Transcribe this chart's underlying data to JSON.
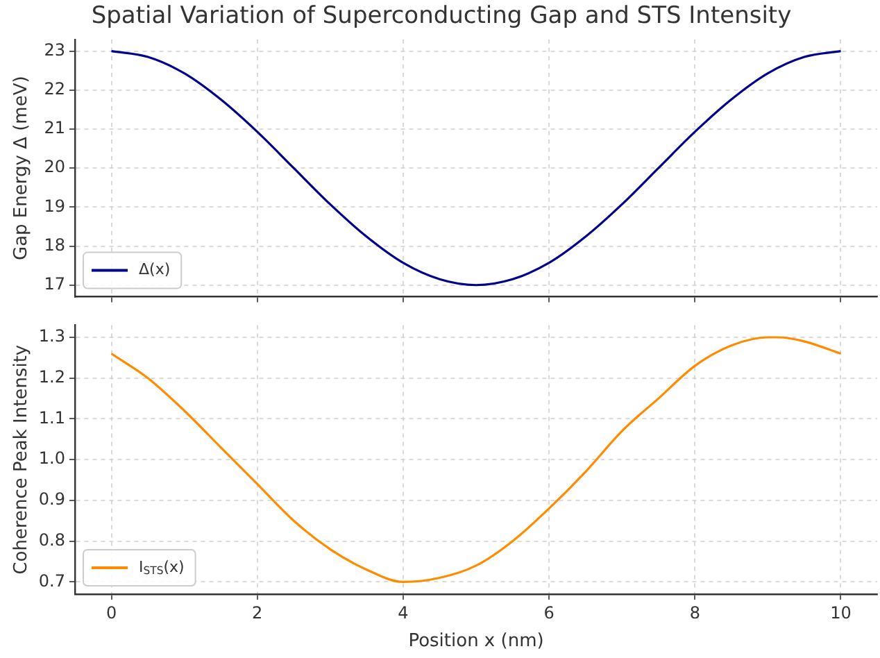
{
  "chart_data": [
    {
      "type": "line",
      "title": "Spatial Variation of Superconducting Gap and STS Intensity",
      "ylabel": "Gap Energy Δ (meV)",
      "x": [
        0,
        0.5,
        1,
        1.5,
        2,
        2.5,
        3,
        3.5,
        4,
        4.5,
        5,
        5.5,
        6,
        6.5,
        7,
        7.5,
        8,
        8.5,
        9,
        9.5,
        10
      ],
      "series": [
        {
          "name": "Δ(x)",
          "color": "#00008b",
          "values": [
            23,
            22.85,
            22.43,
            21.76,
            20.93,
            20,
            19.07,
            18.24,
            17.57,
            17.15,
            17,
            17.15,
            17.57,
            18.24,
            19.07,
            20,
            20.93,
            21.76,
            22.43,
            22.85,
            23
          ]
        }
      ],
      "xlim": [
        -0.5,
        10.5
      ],
      "xticks": [
        0,
        2,
        4,
        6,
        8,
        10
      ],
      "ylim": [
        16.7,
        23.3
      ],
      "yticks": [
        17,
        18,
        19,
        20,
        21,
        22,
        23
      ],
      "tick_labels": "y",
      "grid": true,
      "legend": "bottom left",
      "line_style": "solid",
      "marker": "none"
    },
    {
      "type": "line",
      "xlabel": "Position x (nm)",
      "ylabel": "Coherence Peak Intensity",
      "x": [
        0,
        0.5,
        1,
        1.5,
        2,
        2.5,
        3,
        3.5,
        4,
        4.5,
        5,
        5.5,
        6,
        6.5,
        7,
        7.5,
        8,
        8.5,
        9,
        9.15,
        9.5,
        10
      ],
      "series": [
        {
          "name": "I$_{STS}$(x)",
          "color": "#ff8c00",
          "values": [
            1.26,
            1.2,
            1.12,
            1.03,
            0.94,
            0.85,
            0.78,
            0.73,
            0.7,
            0.71,
            0.74,
            0.8,
            0.88,
            0.97,
            1.07,
            1.15,
            1.23,
            1.28,
            1.3,
            1.3,
            1.29,
            1.26
          ]
        }
      ],
      "xlim": [
        -0.5,
        10.5
      ],
      "xticks": [
        0,
        2,
        4,
        6,
        8,
        10
      ],
      "ylim": [
        0.67,
        1.33
      ],
      "yticks": [
        0.7,
        0.8,
        0.9,
        {
          "value": 1,
          "label": "1.0"
        },
        1.1,
        1.2,
        1.3
      ],
      "grid": true,
      "legend": "bottom left",
      "line_style": "solid",
      "marker": "none"
    }
  ]
}
